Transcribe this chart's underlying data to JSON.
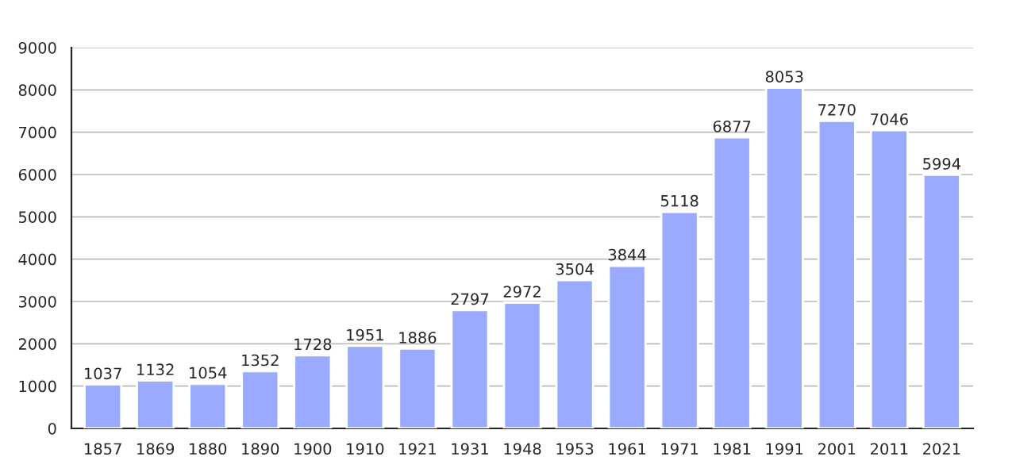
{
  "chart_data": {
    "type": "bar",
    "categories": [
      "1857",
      "1869",
      "1880",
      "1890",
      "1900",
      "1910",
      "1921",
      "1931",
      "1948",
      "1953",
      "1961",
      "1971",
      "1981",
      "1991",
      "2001",
      "2011",
      "2021"
    ],
    "values": [
      1037,
      1132,
      1054,
      1352,
      1728,
      1951,
      1886,
      2797,
      2972,
      3504,
      3844,
      5118,
      6877,
      8053,
      7270,
      7046,
      5994
    ],
    "color": "#99aaff",
    "ylim": [
      0,
      9000
    ],
    "yticks": [
      0,
      1000,
      2000,
      3000,
      4000,
      5000,
      6000,
      7000,
      8000,
      9000
    ],
    "grid": "y",
    "data_labels": true
  }
}
